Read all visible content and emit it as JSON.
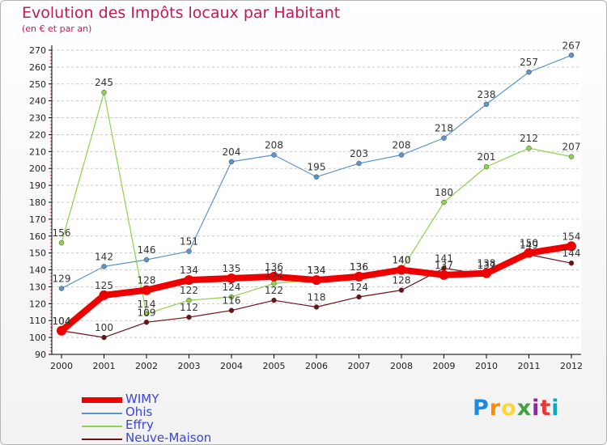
{
  "title": "Evolution des Impôts locaux par Habitant",
  "subtitle": "(en € et par an)",
  "logo": {
    "letters": [
      "P",
      "r",
      "o",
      "x",
      "i",
      "t",
      "i"
    ],
    "colors": [
      "#1e88e5",
      "#fb8c00",
      "#fdd835",
      "#43a047",
      "#8e24aa",
      "#e53935",
      "#00acc1"
    ]
  },
  "colors": {
    "title": "#c2185b",
    "grid": "#c9c9c9",
    "axis": "#000000",
    "legend_text": "#3a46d9"
  },
  "chart_data": {
    "type": "line",
    "title": "Evolution des Impôts locaux par Habitant",
    "subtitle": "(en € et par an)",
    "x": [
      "2000",
      "2001",
      "2002",
      "2003",
      "2004",
      "2005",
      "2006",
      "2007",
      "2008",
      "2009",
      "2010",
      "2011",
      "2012"
    ],
    "ylim": [
      90,
      270
    ],
    "yticks": [
      90,
      100,
      110,
      120,
      130,
      140,
      150,
      160,
      170,
      180,
      190,
      200,
      210,
      220,
      230,
      240,
      250,
      260,
      270
    ],
    "grid": "horizontal dashed",
    "legend": "bottom-left",
    "series": [
      {
        "name": "WIMY",
        "color": "#ee0000",
        "values": [
          104,
          125,
          128,
          134,
          135,
          136,
          134,
          136,
          140,
          137,
          138,
          150,
          154
        ]
      },
      {
        "name": "Ohis",
        "color": "#5b95c9",
        "values": [
          129,
          142,
          146,
          151,
          204,
          208,
          195,
          203,
          208,
          218,
          238,
          257,
          267
        ]
      },
      {
        "name": "Effry",
        "color": "#8fd14f",
        "values": [
          156,
          245,
          114,
          122,
          124,
          132,
          134,
          136,
          140,
          180,
          201,
          212,
          207
        ]
      },
      {
        "name": "Neuve-Maison",
        "color": "#6b1416",
        "values": [
          104,
          100,
          109,
          112,
          116,
          122,
          118,
          124,
          128,
          141,
          137,
          149,
          144
        ]
      }
    ]
  }
}
